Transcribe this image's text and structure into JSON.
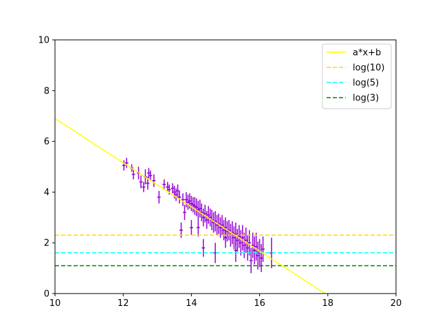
{
  "chart_data": {
    "type": "scatter",
    "title": "",
    "xlabel": "",
    "ylabel": "",
    "xlim": [
      10,
      20
    ],
    "ylim": [
      0,
      10
    ],
    "xticks": [
      "10",
      "12",
      "14",
      "16",
      "18",
      "20"
    ],
    "yticks": [
      "0",
      "2",
      "4",
      "6",
      "8",
      "10"
    ],
    "grid": false,
    "legend_position": "top-right",
    "legend": [
      {
        "label": "a*x+b",
        "color": "#ffff00",
        "style": "solid"
      },
      {
        "label": "log(10)",
        "color": "#ffd700",
        "style": "dashed"
      },
      {
        "label": "log(5)",
        "color": "#00ffff",
        "style": "dashed"
      },
      {
        "label": "log(3)",
        "color": "#008000",
        "style": "dashed"
      }
    ],
    "series": [
      {
        "name": "a*x+b",
        "kind": "line",
        "color": "#ffff00",
        "x": [
          10,
          17.92
        ],
        "y": [
          6.9,
          0.0
        ]
      },
      {
        "name": "log(10)",
        "kind": "hline",
        "color": "#ffd700",
        "y": 2.303
      },
      {
        "name": "log(5)",
        "kind": "hline",
        "color": "#00ffff",
        "y": 1.609
      },
      {
        "name": "log(3)",
        "kind": "hline",
        "color": "#008000",
        "y": 1.099
      },
      {
        "kind": "errorbar",
        "color": "#9400d3",
        "points": [
          [
            12.02,
            5.05,
            0.2,
            0.05
          ],
          [
            12.1,
            5.15,
            0.2,
            0.05
          ],
          [
            12.25,
            4.95,
            0.15,
            0.05
          ],
          [
            12.3,
            4.7,
            0.2,
            0.05
          ],
          [
            12.45,
            4.75,
            0.25,
            0.05
          ],
          [
            12.52,
            4.4,
            0.25,
            0.05
          ],
          [
            12.6,
            4.2,
            0.2,
            0.05
          ],
          [
            12.65,
            4.6,
            0.3,
            0.05
          ],
          [
            12.72,
            4.35,
            0.25,
            0.05
          ],
          [
            12.75,
            4.75,
            0.2,
            0.05
          ],
          [
            12.8,
            4.65,
            0.2,
            0.05
          ],
          [
            12.9,
            4.45,
            0.25,
            0.05
          ],
          [
            13.05,
            3.8,
            0.25,
            0.05
          ],
          [
            13.2,
            4.3,
            0.2,
            0.05
          ],
          [
            13.3,
            4.2,
            0.2,
            0.05
          ],
          [
            13.35,
            4.1,
            0.2,
            0.05
          ],
          [
            13.45,
            4.15,
            0.2,
            0.05
          ],
          [
            13.5,
            4.0,
            0.25,
            0.05
          ],
          [
            13.55,
            3.9,
            0.25,
            0.05
          ],
          [
            13.6,
            4.05,
            0.25,
            0.05
          ],
          [
            13.65,
            3.8,
            0.25,
            0.05
          ],
          [
            13.7,
            2.5,
            0.3,
            0.05
          ],
          [
            13.75,
            3.7,
            0.25,
            0.05
          ],
          [
            13.8,
            3.2,
            0.3,
            0.05
          ],
          [
            13.85,
            3.7,
            0.3,
            0.05
          ],
          [
            13.9,
            3.6,
            0.3,
            0.05
          ],
          [
            13.95,
            3.65,
            0.3,
            0.05
          ],
          [
            14.0,
            3.55,
            0.3,
            0.05
          ],
          [
            14.0,
            2.6,
            0.3,
            0.05
          ],
          [
            14.05,
            3.5,
            0.3,
            0.05
          ],
          [
            14.1,
            3.45,
            0.35,
            0.05
          ],
          [
            14.15,
            3.4,
            0.35,
            0.05
          ],
          [
            14.2,
            2.6,
            0.35,
            0.05
          ],
          [
            14.2,
            3.3,
            0.35,
            0.05
          ],
          [
            14.25,
            3.35,
            0.35,
            0.05
          ],
          [
            14.3,
            3.2,
            0.35,
            0.05
          ],
          [
            14.35,
            1.8,
            0.35,
            0.05
          ],
          [
            14.35,
            3.0,
            0.35,
            0.05
          ],
          [
            14.4,
            3.15,
            0.35,
            0.05
          ],
          [
            14.45,
            2.9,
            0.35,
            0.05
          ],
          [
            14.5,
            3.1,
            0.35,
            0.05
          ],
          [
            14.55,
            3.0,
            0.35,
            0.05
          ],
          [
            14.6,
            2.9,
            0.4,
            0.05
          ],
          [
            14.65,
            2.8,
            0.4,
            0.05
          ],
          [
            14.7,
            1.6,
            0.4,
            0.05
          ],
          [
            14.7,
            2.85,
            0.4,
            0.05
          ],
          [
            14.75,
            2.7,
            0.4,
            0.05
          ],
          [
            14.8,
            2.75,
            0.4,
            0.05
          ],
          [
            14.85,
            2.6,
            0.4,
            0.05
          ],
          [
            14.9,
            2.7,
            0.4,
            0.05
          ],
          [
            14.95,
            2.5,
            0.4,
            0.05
          ],
          [
            15.0,
            2.6,
            0.4,
            0.05
          ],
          [
            15.0,
            2.2,
            0.4,
            0.05
          ],
          [
            15.05,
            2.45,
            0.4,
            0.05
          ],
          [
            15.1,
            2.5,
            0.4,
            0.05
          ],
          [
            15.15,
            2.3,
            0.45,
            0.05
          ],
          [
            15.2,
            2.4,
            0.45,
            0.05
          ],
          [
            15.25,
            2.2,
            0.45,
            0.05
          ],
          [
            15.3,
            2.35,
            0.45,
            0.05
          ],
          [
            15.3,
            1.7,
            0.45,
            0.05
          ],
          [
            15.35,
            2.1,
            0.45,
            0.05
          ],
          [
            15.4,
            2.25,
            0.45,
            0.05
          ],
          [
            15.45,
            2.0,
            0.5,
            0.05
          ],
          [
            15.5,
            2.2,
            0.5,
            0.05
          ],
          [
            15.55,
            1.9,
            0.5,
            0.05
          ],
          [
            15.6,
            2.1,
            0.5,
            0.05
          ],
          [
            15.65,
            1.8,
            0.5,
            0.05
          ],
          [
            15.7,
            2.0,
            0.5,
            0.05
          ],
          [
            15.75,
            1.3,
            0.5,
            0.05
          ],
          [
            15.8,
            1.9,
            0.5,
            0.05
          ],
          [
            15.85,
            1.7,
            0.55,
            0.05
          ],
          [
            15.9,
            1.85,
            0.55,
            0.05
          ],
          [
            15.95,
            1.5,
            0.55,
            0.05
          ],
          [
            16.0,
            1.6,
            0.55,
            0.05
          ],
          [
            16.05,
            1.4,
            0.55,
            0.05
          ],
          [
            16.1,
            1.75,
            0.5,
            0.05
          ],
          [
            16.35,
            1.6,
            0.6,
            0.05
          ]
        ]
      }
    ]
  }
}
